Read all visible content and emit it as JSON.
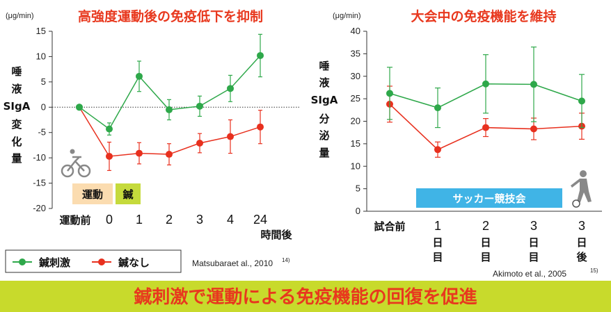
{
  "chart_data": [
    {
      "type": "line",
      "title": "高強度運動後の免疫低下を抑制",
      "unit": "(μg/min)",
      "ylabel": "唾液SIgA変化量",
      "xlabel": "時間後",
      "ylim": [
        -20,
        15
      ],
      "yticks": [
        "15",
        "10",
        "5",
        "0",
        "-5",
        "-10",
        "-15",
        "-20"
      ],
      "categories": [
        "運動前",
        "0",
        "1",
        "2",
        "3",
        "4",
        "24"
      ],
      "series": [
        {
          "name": "鍼刺激",
          "color": "#2ea84a",
          "values": [
            0,
            -4.3,
            6.1,
            -0.5,
            0.2,
            3.7,
            10.2
          ],
          "err": [
            0,
            1.2,
            3.0,
            2.0,
            2.0,
            2.6,
            4.2
          ]
        },
        {
          "name": "鍼なし",
          "color": "#e8301e",
          "values": [
            0,
            -9.7,
            -9.1,
            -9.3,
            -7.1,
            -5.8,
            -3.9
          ],
          "err": [
            0,
            2.8,
            2.1,
            2.1,
            1.9,
            3.3,
            3.3
          ]
        }
      ],
      "phase_boxes": [
        {
          "label": "運動",
          "color": "#fbdcb0"
        },
        {
          "label": "鍼",
          "color": "#c5da3c"
        }
      ],
      "legend": [
        {
          "label": "鍼刺激",
          "color": "#2ea84a"
        },
        {
          "label": "鍼なし",
          "color": "#e8301e"
        }
      ],
      "citation": "Matsubaraet al., 2010",
      "citation_ref": "14)"
    },
    {
      "type": "line",
      "title": "大会中の免疫機能を維持",
      "unit": "(μg/min)",
      "ylabel": "唾液SIgA分泌量",
      "ylim": [
        0,
        40
      ],
      "yticks": [
        "40",
        "35",
        "30",
        "25",
        "20",
        "15",
        "10",
        "5",
        "0"
      ],
      "categories": [
        "試合前",
        "1日目",
        "2日目",
        "3日目",
        "3日後"
      ],
      "category_lines": [
        [
          "試合前"
        ],
        [
          "1",
          "日",
          "目"
        ],
        [
          "2",
          "日",
          "目"
        ],
        [
          "3",
          "日",
          "目"
        ],
        [
          "3",
          "日",
          "後"
        ]
      ],
      "series": [
        {
          "color": "#2ea84a",
          "values": [
            26.2,
            23.0,
            28.3,
            28.2,
            24.5
          ],
          "err": [
            5.8,
            4.4,
            6.5,
            8.3,
            5.9
          ]
        },
        {
          "color": "#e8301e",
          "values": [
            23.8,
            13.7,
            18.6,
            18.3,
            18.9
          ],
          "err": [
            4.0,
            1.7,
            2.0,
            2.4,
            2.9
          ]
        }
      ],
      "event_bar": {
        "label": "サッカー競技会",
        "color": "#40b4e6"
      },
      "citation": "Akimoto et al., 2005",
      "citation_ref": "15)"
    }
  ],
  "banner": {
    "text": "鍼刺激で運動による免疫機能の回復を促進",
    "color": "#c8da2c"
  }
}
